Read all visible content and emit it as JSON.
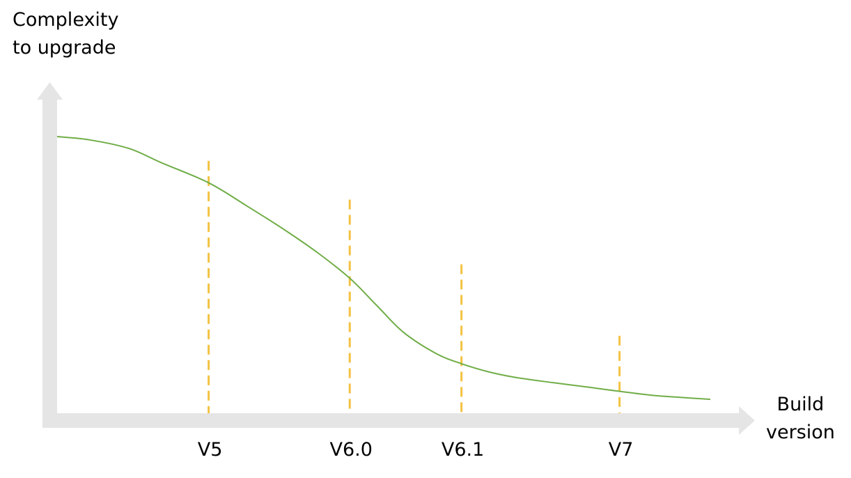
{
  "chart_data": {
    "type": "line",
    "ylabel_lines": [
      "Complexity",
      "to upgrade"
    ],
    "xlabel_lines": [
      "Build",
      "version"
    ],
    "xlim": [
      0,
      100
    ],
    "ylim": [
      0,
      100
    ],
    "versions": [
      {
        "label": "V5",
        "x": 23.2,
        "marker_top": 91.2
      },
      {
        "label": "V6.0",
        "x": 44.8,
        "marker_top": 77.2
      },
      {
        "label": "V6.1",
        "x": 61.9,
        "marker_top": 53.8
      },
      {
        "label": "V7",
        "x": 86.1,
        "marker_top": 28.0
      }
    ],
    "series": [
      {
        "x": [
          0,
          5,
          11,
          16,
          23.2,
          29,
          35,
          40,
          44.8,
          49,
          53,
          58,
          61.9,
          66,
          70,
          76,
          81,
          86.1,
          91,
          95,
          100
        ],
        "y": [
          100,
          98.8,
          95.7,
          90.5,
          83.3,
          75,
          66,
          57.8,
          48.8,
          38.8,
          29.3,
          21.6,
          17.9,
          15,
          13,
          11,
          9.5,
          7.9,
          6.5,
          5.8,
          5.0
        ]
      }
    ],
    "colors": {
      "curve": "#70ad47",
      "marker": "#f4c242",
      "axis": "#e5e5e5"
    }
  }
}
